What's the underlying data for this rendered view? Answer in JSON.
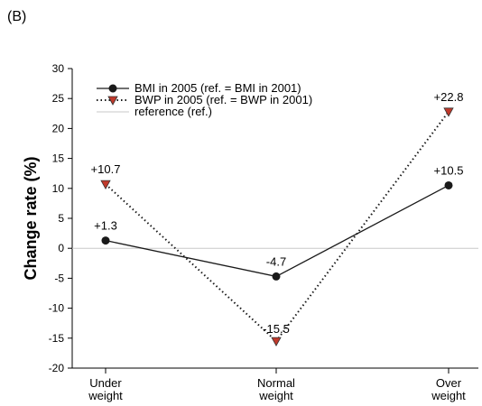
{
  "panel_label": "(B)",
  "chart_data": {
    "type": "line",
    "title": "",
    "xlabel": "",
    "ylabel": "Change rate (%)",
    "ylim": [
      -20,
      30
    ],
    "yticks": [
      30,
      25,
      20,
      15,
      10,
      5,
      0,
      -5,
      -10,
      -15,
      -20
    ],
    "grid": false,
    "legend_position": "top-left",
    "categories": [
      [
        "Under",
        "weight"
      ],
      [
        "Normal",
        "weight"
      ],
      [
        "Over",
        "weight"
      ]
    ],
    "reference": {
      "name": "reference (ref.)",
      "value": 0,
      "color": "#c8c8c8"
    },
    "series": [
      {
        "name": "BMI in 2005 (ref. = BMI in 2001)",
        "values": [
          1.3,
          -4.7,
          10.5
        ],
        "labels": [
          "+1.3",
          "-4.7",
          "+10.5"
        ],
        "line_style": "solid",
        "marker": "circle",
        "color": "#1a1a1a",
        "marker_color": "#1a1a1a"
      },
      {
        "name": "BWP in 2005 (ref. = BWP in 2001)",
        "values": [
          10.7,
          -15.5,
          22.8
        ],
        "labels": [
          "+10.7",
          "-15.5",
          "+22.8"
        ],
        "line_style": "dotted",
        "marker": "triangle-down",
        "color": "#1a1a1a",
        "marker_color": "#c0392b"
      }
    ]
  }
}
